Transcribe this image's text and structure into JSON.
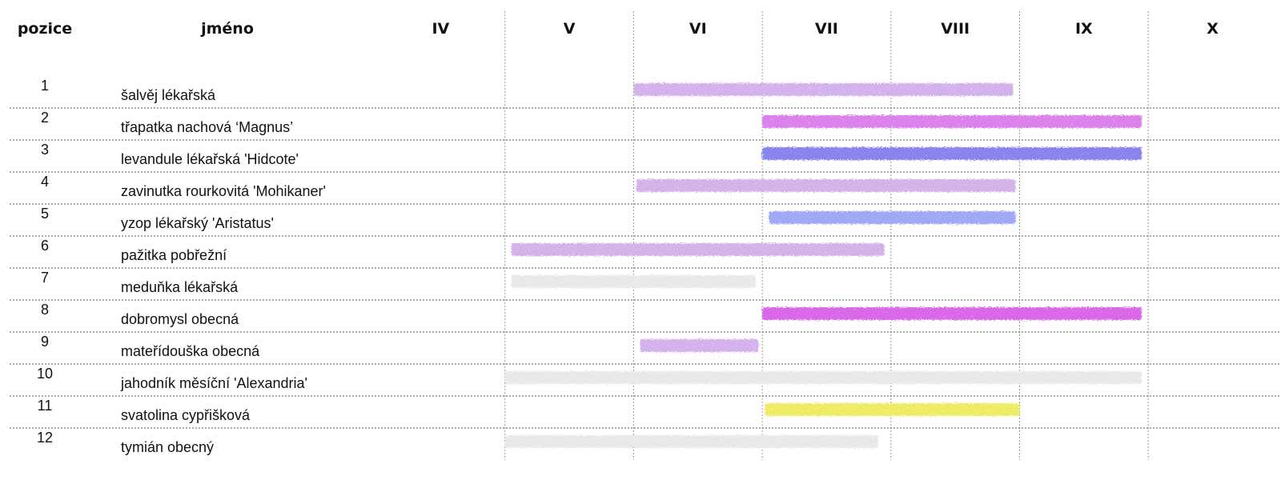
{
  "chart_data": {
    "type": "gantt",
    "headers": {
      "position": "pozice",
      "name": "jméno"
    },
    "months": [
      "IV",
      "V",
      "VI",
      "VII",
      "VIII",
      "IX",
      "X"
    ],
    "rows": [
      {
        "pos": "1",
        "name": "šalvěj lékařská",
        "start": 6.0,
        "end": 8.95,
        "color": "#d3b3ea"
      },
      {
        "pos": "2",
        "name": "třapatka nachová ‘Magnus’",
        "start": 7.0,
        "end": 9.95,
        "color": "#dc82ec"
      },
      {
        "pos": "3",
        "name": "levandule lékařská 'Hidcote'",
        "start": 7.0,
        "end": 9.95,
        "color": "#8a84ee"
      },
      {
        "pos": "4",
        "name": "zavinutka rourkovitá 'Mohikaner'",
        "start": 6.02,
        "end": 8.97,
        "color": "#d3b3ea"
      },
      {
        "pos": "5",
        "name": "yzop lékařský 'Aristatus'",
        "start": 7.05,
        "end": 8.97,
        "color": "#a2a8f4"
      },
      {
        "pos": "6",
        "name": "pažitka pobřežní",
        "start": 5.05,
        "end": 7.95,
        "color": "#d3b3ea"
      },
      {
        "pos": "7",
        "name": "meduňka lékařská",
        "start": 5.05,
        "end": 6.95,
        "color": "#ebe8e8"
      },
      {
        "pos": "8",
        "name": "dobromysl obecná",
        "start": 7.0,
        "end": 9.95,
        "color": "#da69ea"
      },
      {
        "pos": "9",
        "name": "mateřídouška obecná",
        "start": 6.05,
        "end": 6.97,
        "color": "#d3b3ea"
      },
      {
        "pos": "10",
        "name": "jahodník měsíční 'Alexandria'",
        "start": 5.0,
        "end": 9.95,
        "color": "#ebe8e8"
      },
      {
        "pos": "11",
        "name": "svatolina cypřišková",
        "start": 7.02,
        "end": 9.0,
        "color": "#eeeb66"
      },
      {
        "pos": "12",
        "name": "tymián obecný",
        "start": 5.0,
        "end": 7.9,
        "color": "#ebe8e8"
      }
    ]
  }
}
